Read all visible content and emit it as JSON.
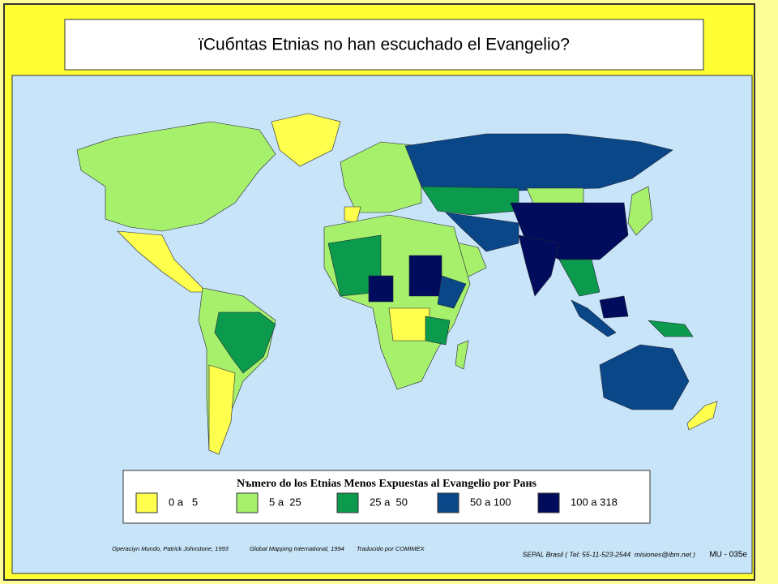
{
  "title": "ïCuбntas Etnias no han escuchado el Evangelio?",
  "legend": {
    "title": "Nъmero do los Etnias Menos Expuestas al Evangelio por Paнs",
    "items": [
      {
        "label": "0 a   5",
        "color": "#ffff4d"
      },
      {
        "label": "5 a  25",
        "color": "#a6f06c"
      },
      {
        "label": "25 a  50",
        "color": "#0c9a4c"
      },
      {
        "label": "50 a 100",
        "color": "#0a4788"
      },
      {
        "label": "100 a 318",
        "color": "#020c5c"
      }
    ]
  },
  "credits": [
    "Operaciуn Mundo, Patrick Johnstone, 1993",
    "Global Mapping International, 1994",
    "Traducido por COMIMEX"
  ],
  "contact": "SEPAL Brasil ( Tel: 55-11-523-2544  misiones@ibm.net )",
  "code": "MU - 035e"
}
